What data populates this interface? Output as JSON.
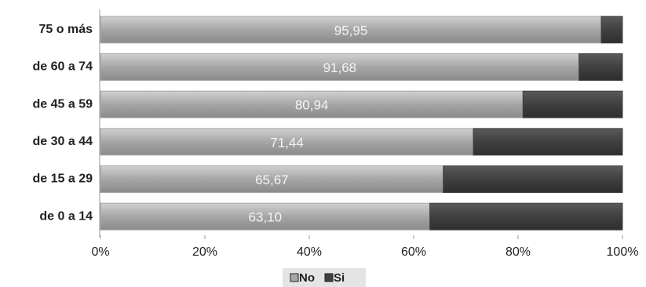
{
  "chart_data": {
    "type": "stacked-bar-horizontal",
    "categories": [
      "75 o más",
      "de 60 a 74",
      "de 45 a 59",
      "de 30 a 44",
      "de 15 a 29",
      "de 0 a 14"
    ],
    "series": [
      {
        "name": "No",
        "color": "#a6a6a6",
        "values": [
          95.95,
          91.68,
          80.94,
          71.44,
          65.67,
          63.1
        ],
        "value_labels": [
          "95,95",
          "91,68",
          "80,94",
          "71,44",
          "65,67",
          "63,10"
        ]
      },
      {
        "name": "Si",
        "color": "#404040",
        "values": [
          4.05,
          8.32,
          19.06,
          28.56,
          34.33,
          36.9
        ]
      }
    ],
    "xlim": [
      0,
      100
    ],
    "xticks": [
      {
        "value": 0,
        "label": "0%"
      },
      {
        "value": 20,
        "label": "20%"
      },
      {
        "value": 40,
        "label": "40%"
      },
      {
        "value": 60,
        "label": "60%"
      },
      {
        "value": 80,
        "label": "80%"
      },
      {
        "value": 100,
        "label": "100%"
      }
    ],
    "legend": "bottom"
  }
}
